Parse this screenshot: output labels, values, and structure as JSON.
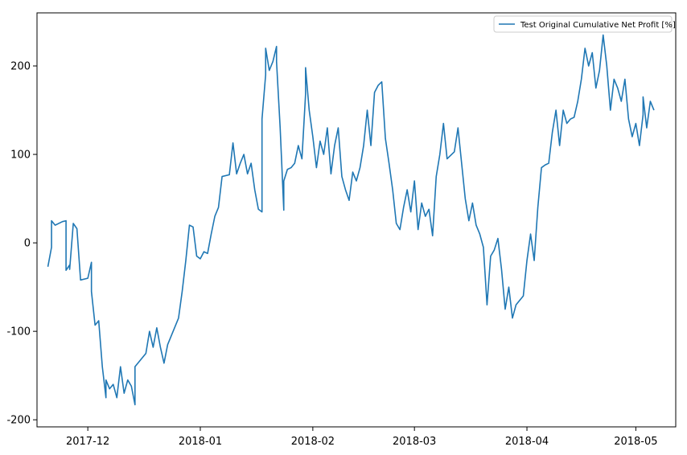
{
  "chart_data": {
    "type": "line",
    "title": "",
    "xlabel": "",
    "ylabel": "",
    "ylim": [
      -208,
      260
    ],
    "xlim": [
      "2017-11-17",
      "2018-05-12"
    ],
    "grid": false,
    "legend_position": "top-right",
    "x_ticks": [
      {
        "date": "2017-12-01",
        "label": "2017-12"
      },
      {
        "date": "2018-01-01",
        "label": "2018-01"
      },
      {
        "date": "2018-02-01",
        "label": "2018-02"
      },
      {
        "date": "2018-03-01",
        "label": "2018-03"
      },
      {
        "date": "2018-04-01",
        "label": "2018-04"
      },
      {
        "date": "2018-05-01",
        "label": "2018-05"
      }
    ],
    "y_ticks": [
      {
        "value": 200,
        "label": "200"
      },
      {
        "value": 100,
        "label": "100"
      },
      {
        "value": 0,
        "label": "0"
      },
      {
        "value": -100,
        "label": "-100"
      },
      {
        "value": -200,
        "label": "-200"
      }
    ],
    "series": [
      {
        "name": "Test Original Cumulative Net Profit [%]",
        "color": "#1f77b4",
        "points": [
          [
            "2017-11-20",
            -27
          ],
          [
            "2017-11-21",
            -5
          ],
          [
            "2017-11-21",
            25
          ],
          [
            "2017-11-22",
            20
          ],
          [
            "2017-11-24",
            24
          ],
          [
            "2017-11-25",
            25
          ],
          [
            "2017-11-25",
            -31
          ],
          [
            "2017-11-26",
            -25
          ],
          [
            "2017-11-26",
            -30
          ],
          [
            "2017-11-27",
            22
          ],
          [
            "2017-11-28",
            16
          ],
          [
            "2017-11-29",
            -42
          ],
          [
            "2017-12-01",
            -40
          ],
          [
            "2017-12-02",
            -22
          ],
          [
            "2017-12-02",
            -55
          ],
          [
            "2017-12-03",
            -93
          ],
          [
            "2017-12-04",
            -88
          ],
          [
            "2017-12-05",
            -140
          ],
          [
            "2017-12-06",
            -175
          ],
          [
            "2017-12-06",
            -155
          ],
          [
            "2017-12-07",
            -165
          ],
          [
            "2017-12-08",
            -160
          ],
          [
            "2017-12-09",
            -175
          ],
          [
            "2017-12-10",
            -140
          ],
          [
            "2017-12-11",
            -170
          ],
          [
            "2017-12-12",
            -155
          ],
          [
            "2017-12-13",
            -162
          ],
          [
            "2017-12-14",
            -183
          ],
          [
            "2017-12-14",
            -140
          ],
          [
            "2017-12-17",
            -125
          ],
          [
            "2017-12-18",
            -100
          ],
          [
            "2017-12-19",
            -118
          ],
          [
            "2017-12-20",
            -96
          ],
          [
            "2017-12-21",
            -118
          ],
          [
            "2017-12-22",
            -136
          ],
          [
            "2017-12-23",
            -115
          ],
          [
            "2017-12-26",
            -85
          ],
          [
            "2017-12-27",
            -55
          ],
          [
            "2017-12-28",
            -20
          ],
          [
            "2017-12-29",
            20
          ],
          [
            "2017-12-30",
            18
          ],
          [
            "2017-12-31",
            -15
          ],
          [
            "2018-01-01",
            -18
          ],
          [
            "2018-01-02",
            -10
          ],
          [
            "2018-01-03",
            -12
          ],
          [
            "2018-01-04",
            10
          ],
          [
            "2018-01-05",
            30
          ],
          [
            "2018-01-06",
            40
          ],
          [
            "2018-01-07",
            75
          ],
          [
            "2018-01-09",
            77
          ],
          [
            "2018-01-10",
            113
          ],
          [
            "2018-01-11",
            78
          ],
          [
            "2018-01-12",
            90
          ],
          [
            "2018-01-13",
            100
          ],
          [
            "2018-01-14",
            78
          ],
          [
            "2018-01-15",
            90
          ],
          [
            "2018-01-16",
            60
          ],
          [
            "2018-01-17",
            38
          ],
          [
            "2018-01-18",
            35
          ],
          [
            "2018-01-18",
            140
          ],
          [
            "2018-01-19",
            190
          ],
          [
            "2018-01-19",
            220
          ],
          [
            "2018-01-20",
            195
          ],
          [
            "2018-01-21",
            205
          ],
          [
            "2018-01-22",
            222
          ],
          [
            "2018-01-22",
            205
          ],
          [
            "2018-01-23",
            130
          ],
          [
            "2018-01-24",
            37
          ],
          [
            "2018-01-24",
            70
          ],
          [
            "2018-01-25",
            83
          ],
          [
            "2018-01-26",
            85
          ],
          [
            "2018-01-27",
            90
          ],
          [
            "2018-01-28",
            110
          ],
          [
            "2018-01-29",
            95
          ],
          [
            "2018-01-30",
            168
          ],
          [
            "2018-01-30",
            198
          ],
          [
            "2018-01-31",
            150
          ],
          [
            "2018-02-01",
            120
          ],
          [
            "2018-02-02",
            85
          ],
          [
            "2018-02-03",
            115
          ],
          [
            "2018-02-04",
            100
          ],
          [
            "2018-02-05",
            130
          ],
          [
            "2018-02-06",
            78
          ],
          [
            "2018-02-07",
            110
          ],
          [
            "2018-02-08",
            130
          ],
          [
            "2018-02-09",
            75
          ],
          [
            "2018-02-10",
            60
          ],
          [
            "2018-02-11",
            48
          ],
          [
            "2018-02-12",
            80
          ],
          [
            "2018-02-13",
            70
          ],
          [
            "2018-02-14",
            85
          ],
          [
            "2018-02-15",
            110
          ],
          [
            "2018-02-16",
            150
          ],
          [
            "2018-02-17",
            110
          ],
          [
            "2018-02-18",
            170
          ],
          [
            "2018-02-19",
            178
          ],
          [
            "2018-02-20",
            182
          ],
          [
            "2018-02-21",
            118
          ],
          [
            "2018-02-22",
            90
          ],
          [
            "2018-02-23",
            60
          ],
          [
            "2018-02-24",
            22
          ],
          [
            "2018-02-25",
            15
          ],
          [
            "2018-02-26",
            40
          ],
          [
            "2018-02-27",
            60
          ],
          [
            "2018-02-28",
            35
          ],
          [
            "2018-03-01",
            70
          ],
          [
            "2018-03-02",
            15
          ],
          [
            "2018-03-03",
            45
          ],
          [
            "2018-03-04",
            30
          ],
          [
            "2018-03-05",
            38
          ],
          [
            "2018-03-06",
            8
          ],
          [
            "2018-03-07",
            75
          ],
          [
            "2018-03-08",
            100
          ],
          [
            "2018-03-09",
            135
          ],
          [
            "2018-03-10",
            95
          ],
          [
            "2018-03-12",
            103
          ],
          [
            "2018-03-13",
            130
          ],
          [
            "2018-03-14",
            90
          ],
          [
            "2018-03-15",
            50
          ],
          [
            "2018-03-16",
            25
          ],
          [
            "2018-03-17",
            45
          ],
          [
            "2018-03-18",
            20
          ],
          [
            "2018-03-19",
            10
          ],
          [
            "2018-03-20",
            -5
          ],
          [
            "2018-03-21",
            -70
          ],
          [
            "2018-03-22",
            -15
          ],
          [
            "2018-03-23",
            -8
          ],
          [
            "2018-03-24",
            5
          ],
          [
            "2018-03-25",
            -30
          ],
          [
            "2018-03-26",
            -75
          ],
          [
            "2018-03-27",
            -50
          ],
          [
            "2018-03-28",
            -85
          ],
          [
            "2018-03-29",
            -70
          ],
          [
            "2018-03-30",
            -65
          ],
          [
            "2018-03-31",
            -60
          ],
          [
            "2018-04-01",
            -20
          ],
          [
            "2018-04-02",
            10
          ],
          [
            "2018-04-03",
            -20
          ],
          [
            "2018-04-04",
            40
          ],
          [
            "2018-04-05",
            85
          ],
          [
            "2018-04-06",
            88
          ],
          [
            "2018-04-07",
            90
          ],
          [
            "2018-04-08",
            125
          ],
          [
            "2018-04-09",
            150
          ],
          [
            "2018-04-10",
            110
          ],
          [
            "2018-04-11",
            150
          ],
          [
            "2018-04-12",
            135
          ],
          [
            "2018-04-13",
            140
          ],
          [
            "2018-04-14",
            142
          ],
          [
            "2018-04-15",
            160
          ],
          [
            "2018-04-16",
            185
          ],
          [
            "2018-04-17",
            220
          ],
          [
            "2018-04-18",
            200
          ],
          [
            "2018-04-19",
            215
          ],
          [
            "2018-04-20",
            175
          ],
          [
            "2018-04-21",
            195
          ],
          [
            "2018-04-22",
            235
          ],
          [
            "2018-04-23",
            200
          ],
          [
            "2018-04-24",
            150
          ],
          [
            "2018-04-25",
            185
          ],
          [
            "2018-04-26",
            175
          ],
          [
            "2018-04-27",
            160
          ],
          [
            "2018-04-28",
            185
          ],
          [
            "2018-04-29",
            140
          ],
          [
            "2018-04-30",
            120
          ],
          [
            "2018-05-01",
            135
          ],
          [
            "2018-05-02",
            110
          ],
          [
            "2018-05-03",
            145
          ],
          [
            "2018-05-03",
            165
          ],
          [
            "2018-05-04",
            130
          ],
          [
            "2018-05-05",
            160
          ],
          [
            "2018-05-06",
            150
          ]
        ]
      }
    ]
  }
}
